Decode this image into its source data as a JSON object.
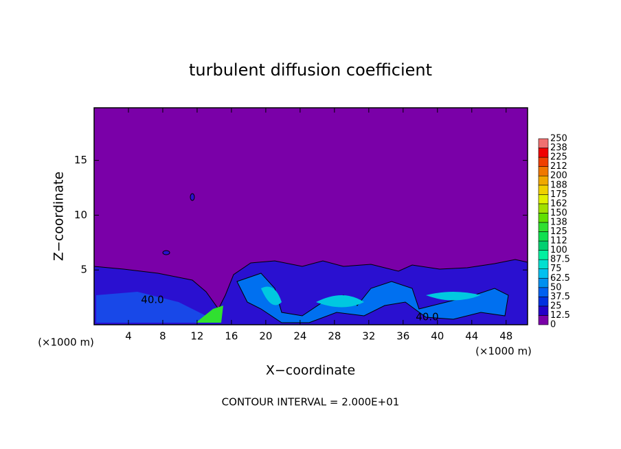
{
  "chart_data": {
    "type": "contour",
    "title": "turbulent diffusion coefficient",
    "x_label": "X−coordinate",
    "y_label": "Z−coordinate",
    "x_unit": "(×1000 m)",
    "footer": "CONTOUR INTERVAL = 2.000E+01",
    "contour_labels": [
      "40.0",
      "40.0"
    ],
    "xlim": [
      0,
      50.5
    ],
    "ylim": [
      0,
      19.8
    ],
    "xticks": [
      4,
      8,
      12,
      16,
      20,
      24,
      28,
      32,
      36,
      40,
      44,
      48
    ],
    "yticks": [
      5,
      10,
      15
    ],
    "colorbar": {
      "levels": [
        0,
        12.5,
        25,
        37.5,
        50,
        62.5,
        75,
        87.5,
        100,
        112,
        125,
        138,
        150,
        162,
        175,
        188,
        200,
        212,
        225,
        238,
        250
      ],
      "colors": [
        "#7a00a8",
        "#2400c8",
        "#0030e0",
        "#0060f0",
        "#0090f0",
        "#00c0f0",
        "#00e0d0",
        "#00f0a0",
        "#00d070",
        "#10e050",
        "#30e030",
        "#60e000",
        "#a0e000",
        "#e0f000",
        "#f0d000",
        "#f0a800",
        "#f07800",
        "#f04000",
        "#f00000",
        "#f07070"
      ]
    }
  }
}
